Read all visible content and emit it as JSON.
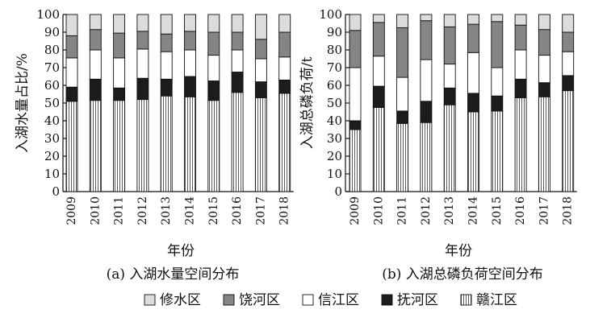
{
  "colors": {
    "修水区": "#dcdcdc",
    "饶河区": "#858585",
    "信江区": "#ffffff",
    "抚河区": "#1c1c1c",
    "赣江区": "hatch"
  },
  "legend": {
    "placement": "bottom",
    "items": [
      "修水区",
      "饶河区",
      "信江区",
      "抚河区",
      "赣江区"
    ]
  },
  "chart_data": [
    {
      "type": "bar",
      "stacked": true,
      "caption": "(a) 入湖水量空间分布",
      "xlabel": "年份",
      "ylabel": "入湖水量占比/%",
      "ylim": [
        0,
        100
      ],
      "yticks": [
        0,
        10,
        20,
        30,
        40,
        50,
        60,
        70,
        80,
        90,
        100
      ],
      "categories": [
        "2009",
        "2010",
        "2011",
        "2012",
        "2013",
        "2014",
        "2015",
        "2016",
        "2017",
        "2018"
      ],
      "series": [
        {
          "name": "赣江区",
          "values": [
            51,
            51.5,
            51.5,
            52,
            54,
            53.5,
            51.5,
            56,
            53,
            55.5
          ]
        },
        {
          "name": "抚河区",
          "values": [
            8,
            12,
            7,
            12,
            9.5,
            11.5,
            11,
            11.5,
            9,
            7.5
          ]
        },
        {
          "name": "信江区",
          "values": [
            16.5,
            16.5,
            17,
            16.5,
            15.5,
            15,
            14.5,
            12.5,
            13,
            13
          ]
        },
        {
          "name": "饶河区",
          "values": [
            12.5,
            11.5,
            14,
            10,
            10,
            10.5,
            13,
            10,
            11,
            14
          ]
        },
        {
          "name": "修水区",
          "values": [
            12,
            8.5,
            10.5,
            9.5,
            11,
            9.5,
            10,
            10,
            14,
            10
          ]
        }
      ]
    },
    {
      "type": "bar",
      "stacked": true,
      "caption": "(b) 入湖总磷负荷空间分布",
      "xlabel": "年份",
      "ylabel": "入湖总磷负荷/t",
      "ylim": [
        0,
        100
      ],
      "yticks": [
        0,
        10,
        20,
        30,
        40,
        50,
        60,
        70,
        80,
        90,
        100
      ],
      "categories": [
        "2009",
        "2010",
        "2011",
        "2012",
        "2013",
        "2014",
        "2015",
        "2016",
        "2017",
        "2018"
      ],
      "series": [
        {
          "name": "赣江区",
          "values": [
            35,
            47.5,
            38.5,
            39,
            49,
            45,
            45.5,
            53,
            53.5,
            57
          ]
        },
        {
          "name": "抚河区",
          "values": [
            5,
            12,
            7,
            12,
            9.5,
            10.5,
            8.5,
            10.5,
            8,
            8.5
          ]
        },
        {
          "name": "信江区",
          "values": [
            30,
            17,
            19,
            23.5,
            13.5,
            23,
            16,
            16.5,
            15.5,
            13.5
          ]
        },
        {
          "name": "饶河区",
          "values": [
            21,
            19,
            28,
            22,
            21,
            16,
            26,
            14,
            14.5,
            11
          ]
        },
        {
          "name": "修水区",
          "values": [
            9,
            4.5,
            7.5,
            3.5,
            7,
            5.5,
            4,
            6,
            8.5,
            10
          ]
        }
      ]
    }
  ]
}
